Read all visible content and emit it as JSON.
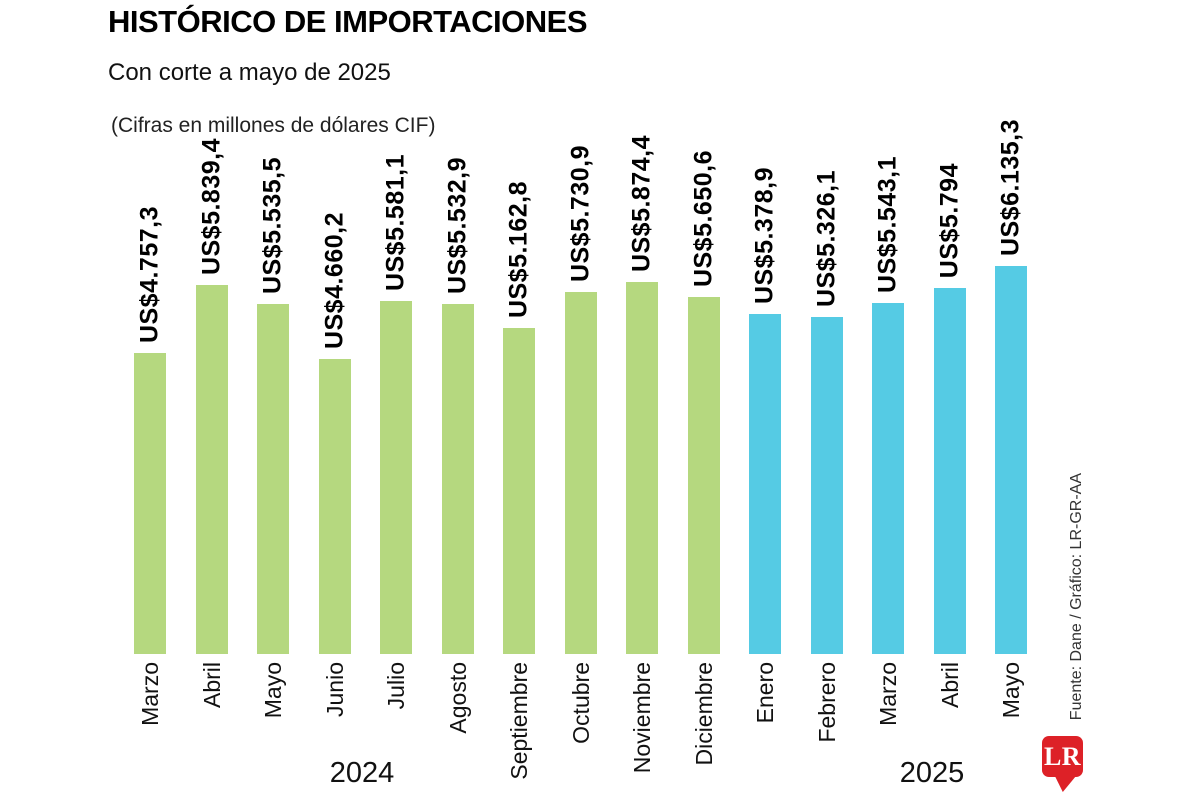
{
  "chart_data": {
    "type": "bar",
    "title": "HISTÓRICO DE IMPORTACIONES",
    "subtitle": "Con corte a mayo de 2025",
    "unit_note": "(Cifras en millones de dólares CIF)",
    "xlabel": "",
    "ylabel": "",
    "ylim": [
      0,
      6135.3
    ],
    "grid": false,
    "legend": "none",
    "categories": [
      "Marzo",
      "Abril",
      "Mayo",
      "Junio",
      "Julio",
      "Agosto",
      "Septiembre",
      "Octubre",
      "Noviembre",
      "Diciembre",
      "Enero",
      "Febrero",
      "Marzo",
      "Abril",
      "Mayo"
    ],
    "values": [
      4757.3,
      5839.4,
      5535.5,
      4660.2,
      5581.1,
      5532.9,
      5162.8,
      5730.9,
      5874.4,
      5650.6,
      5378.9,
      5326.1,
      5543.1,
      5794,
      6135.3
    ],
    "value_labels": [
      "US$4.757,3",
      "US$5.839,4",
      "US$5.535,5",
      "US$4.660,2",
      "US$5.581,1",
      "US$5.532,9",
      "US$5.162,8",
      "US$5.730,9",
      "US$5.874,4",
      "US$5.650,6",
      "US$5.378,9",
      "US$5.326,1",
      "US$5.543,1",
      "US$5.794",
      "US$6.135,3"
    ],
    "groups": [
      {
        "label": "2024",
        "start_index": 0,
        "end_index": 9,
        "color": "#b5d87f"
      },
      {
        "label": "2025",
        "start_index": 10,
        "end_index": 14,
        "color": "#55cbe4"
      }
    ]
  },
  "footer": {
    "source": "Fuente: Dane / Gráfico: LR-GR-AA",
    "logo_text": "LR",
    "logo_color": "#dd2127"
  }
}
